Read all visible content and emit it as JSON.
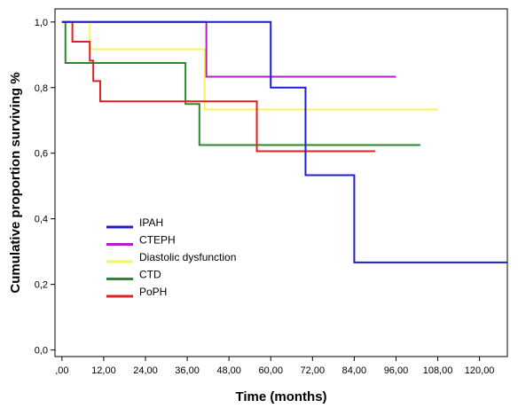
{
  "chart_data": {
    "type": "line",
    "step": true,
    "xlabel": "Time (months)",
    "ylabel": "Cumulative proportion surviving %",
    "xlim": [
      -2,
      128
    ],
    "ylim": [
      -0.02,
      1.04
    ],
    "xticks": [
      0,
      12,
      24,
      36,
      48,
      60,
      72,
      84,
      96,
      108,
      120
    ],
    "xtick_labels": [
      ",00",
      "12,00",
      "24,00",
      "36,00",
      "48,00",
      "60,00",
      "72,00",
      "84,00",
      "96,00",
      "108,00",
      "120,00"
    ],
    "yticks": [
      0,
      0.2,
      0.4,
      0.6,
      0.8,
      1.0
    ],
    "ytick_labels": [
      "0,0",
      "0,2",
      "0,4",
      "0,6",
      "0,8",
      "1,0"
    ],
    "grid": false,
    "legend_position": "left-center",
    "series": [
      {
        "name": "IPAH",
        "color": "#1f1fd0",
        "x": [
          0,
          60,
          70,
          84,
          128
        ],
        "y": [
          1.0,
          0.8,
          0.533,
          0.267,
          0.267
        ]
      },
      {
        "name": "CTEPH",
        "color": "#b020c0",
        "x": [
          0,
          41.5,
          96
        ],
        "y": [
          1.0,
          0.833,
          0.833
        ]
      },
      {
        "name": "Diastolic dysfunction",
        "color": "#f5f55a",
        "x": [
          0,
          8,
          41,
          108
        ],
        "y": [
          1.0,
          0.917,
          0.733,
          0.733
        ]
      },
      {
        "name": "CTD",
        "color": "#2a8a2a",
        "x": [
          0,
          1,
          35.5,
          39.5,
          103
        ],
        "y": [
          1.0,
          0.875,
          0.75,
          0.625,
          0.625
        ]
      },
      {
        "name": "PoPH",
        "color": "#e02020",
        "x": [
          0,
          3,
          8,
          9,
          11,
          56,
          90
        ],
        "y": [
          1.0,
          0.94,
          0.882,
          0.82,
          0.758,
          0.606,
          0.606
        ]
      }
    ]
  }
}
